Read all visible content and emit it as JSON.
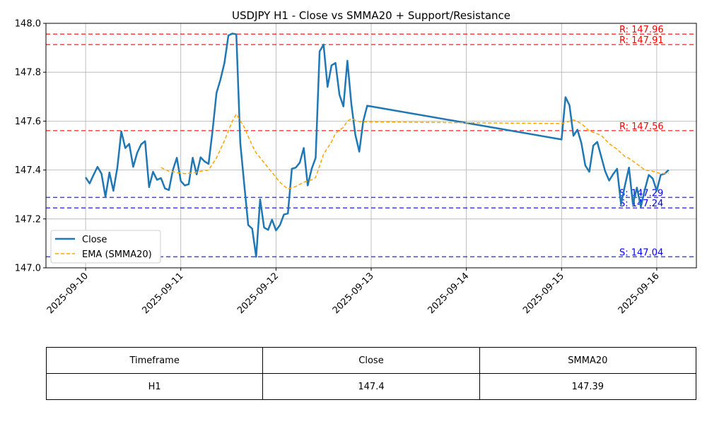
{
  "chart_data": {
    "type": "line",
    "title": "USDJPY H1 - Close vs SMMA20 + Support/Resistance",
    "ylim": [
      147.0,
      148.0
    ],
    "xlim": [
      "2025-09-09T14:00",
      "2025-09-16T10:00"
    ],
    "yticks": [
      "147.0",
      "147.2",
      "147.4",
      "147.6",
      "147.8",
      "148.0"
    ],
    "xticks": [
      "2025-09-10",
      "2025-09-11",
      "2025-09-12",
      "2025-09-13",
      "2025-09-14",
      "2025-09-15",
      "2025-09-16"
    ],
    "grid": true,
    "legend_position": "lower-left",
    "series": [
      {
        "name": "Close",
        "color": "#1f77b4",
        "style": "solid",
        "points": [
          [
            "2025-09-10T00:00",
            147.37
          ],
          [
            "2025-09-10T01:00",
            147.345
          ],
          [
            "2025-09-10T02:00",
            147.38
          ],
          [
            "2025-09-10T03:00",
            147.413
          ],
          [
            "2025-09-10T04:00",
            147.385
          ],
          [
            "2025-09-10T05:00",
            147.29
          ],
          [
            "2025-09-10T06:00",
            147.39
          ],
          [
            "2025-09-10T07:00",
            147.315
          ],
          [
            "2025-09-10T08:00",
            147.41
          ],
          [
            "2025-09-10T09:00",
            147.558
          ],
          [
            "2025-09-10T10:00",
            147.49
          ],
          [
            "2025-09-10T11:00",
            147.507
          ],
          [
            "2025-09-10T12:00",
            147.413
          ],
          [
            "2025-09-10T13:00",
            147.47
          ],
          [
            "2025-09-10T14:00",
            147.505
          ],
          [
            "2025-09-10T15:00",
            147.518
          ],
          [
            "2025-09-10T16:00",
            147.33
          ],
          [
            "2025-09-10T17:00",
            147.393
          ],
          [
            "2025-09-10T18:00",
            147.36
          ],
          [
            "2025-09-10T19:00",
            147.367
          ],
          [
            "2025-09-10T20:00",
            147.325
          ],
          [
            "2025-09-10T21:00",
            147.318
          ],
          [
            "2025-09-10T22:00",
            147.4
          ],
          [
            "2025-09-10T23:00",
            147.45
          ],
          [
            "2025-09-11T00:00",
            147.355
          ],
          [
            "2025-09-11T01:00",
            147.337
          ],
          [
            "2025-09-11T02:00",
            147.342
          ],
          [
            "2025-09-11T03:00",
            147.45
          ],
          [
            "2025-09-11T04:00",
            147.382
          ],
          [
            "2025-09-11T05:00",
            147.452
          ],
          [
            "2025-09-11T06:00",
            147.435
          ],
          [
            "2025-09-11T07:00",
            147.425
          ],
          [
            "2025-09-11T08:00",
            147.56
          ],
          [
            "2025-09-11T09:00",
            147.715
          ],
          [
            "2025-09-11T10:00",
            147.77
          ],
          [
            "2025-09-11T11:00",
            147.838
          ],
          [
            "2025-09-11T12:00",
            147.95
          ],
          [
            "2025-09-11T13:00",
            147.958
          ],
          [
            "2025-09-11T14:00",
            147.955
          ],
          [
            "2025-09-11T15:00",
            147.51
          ],
          [
            "2025-09-11T16:00",
            147.34
          ],
          [
            "2025-09-11T17:00",
            147.175
          ],
          [
            "2025-09-11T18:00",
            147.16
          ],
          [
            "2025-09-11T19:00",
            147.045
          ],
          [
            "2025-09-11T20:00",
            147.28
          ],
          [
            "2025-09-11T21:00",
            147.165
          ],
          [
            "2025-09-11T22:00",
            147.155
          ],
          [
            "2025-09-11T23:00",
            147.197
          ],
          [
            "2025-09-12T00:00",
            147.153
          ],
          [
            "2025-09-12T01:00",
            147.175
          ],
          [
            "2025-09-12T02:00",
            147.218
          ],
          [
            "2025-09-12T03:00",
            147.222
          ],
          [
            "2025-09-12T04:00",
            147.405
          ],
          [
            "2025-09-12T05:00",
            147.41
          ],
          [
            "2025-09-12T06:00",
            147.43
          ],
          [
            "2025-09-12T07:00",
            147.49
          ],
          [
            "2025-09-12T08:00",
            147.337
          ],
          [
            "2025-09-12T09:00",
            147.405
          ],
          [
            "2025-09-12T10:00",
            147.45
          ],
          [
            "2025-09-12T11:00",
            147.885
          ],
          [
            "2025-09-12T12:00",
            147.913
          ],
          [
            "2025-09-12T13:00",
            147.74
          ],
          [
            "2025-09-12T14:00",
            147.828
          ],
          [
            "2025-09-12T15:00",
            147.838
          ],
          [
            "2025-09-12T16:00",
            147.708
          ],
          [
            "2025-09-12T17:00",
            147.66
          ],
          [
            "2025-09-12T18:00",
            147.847
          ],
          [
            "2025-09-12T19:00",
            147.67
          ],
          [
            "2025-09-12T20:00",
            147.545
          ],
          [
            "2025-09-12T21:00",
            147.475
          ],
          [
            "2025-09-12T22:00",
            147.6
          ],
          [
            "2025-09-12T23:00",
            147.663
          ],
          [
            "2025-09-15T00:00",
            147.525
          ],
          [
            "2025-09-15T01:00",
            147.698
          ],
          [
            "2025-09-15T02:00",
            147.665
          ],
          [
            "2025-09-15T03:00",
            147.54
          ],
          [
            "2025-09-15T04:00",
            147.565
          ],
          [
            "2025-09-15T05:00",
            147.51
          ],
          [
            "2025-09-15T06:00",
            147.418
          ],
          [
            "2025-09-15T07:00",
            147.393
          ],
          [
            "2025-09-15T08:00",
            147.5
          ],
          [
            "2025-09-15T09:00",
            147.515
          ],
          [
            "2025-09-15T10:00",
            147.455
          ],
          [
            "2025-09-15T11:00",
            147.395
          ],
          [
            "2025-09-15T12:00",
            147.357
          ],
          [
            "2025-09-15T13:00",
            147.383
          ],
          [
            "2025-09-15T14:00",
            147.405
          ],
          [
            "2025-09-15T15:00",
            147.26
          ],
          [
            "2025-09-15T16:00",
            147.338
          ],
          [
            "2025-09-15T17:00",
            147.41
          ],
          [
            "2025-09-15T18:00",
            147.26
          ],
          [
            "2025-09-15T19:00",
            147.328
          ],
          [
            "2025-09-15T20:00",
            147.25
          ],
          [
            "2025-09-15T21:00",
            147.32
          ],
          [
            "2025-09-15T22:00",
            147.38
          ],
          [
            "2025-09-15T23:00",
            147.365
          ],
          [
            "2025-09-16T00:00",
            147.315
          ],
          [
            "2025-09-16T01:00",
            147.38
          ],
          [
            "2025-09-16T02:00",
            147.385
          ],
          [
            "2025-09-16T03:00",
            147.4
          ]
        ]
      },
      {
        "name": "EMA (SMMA20)",
        "color": "#ffa500",
        "style": "dashed",
        "points": [
          [
            "2025-09-10T19:00",
            147.41
          ],
          [
            "2025-09-10T21:00",
            147.395
          ],
          [
            "2025-09-10T23:00",
            147.39
          ],
          [
            "2025-09-11T01:00",
            147.385
          ],
          [
            "2025-09-11T03:00",
            147.388
          ],
          [
            "2025-09-11T05:00",
            147.395
          ],
          [
            "2025-09-11T07:00",
            147.4
          ],
          [
            "2025-09-11T09:00",
            147.45
          ],
          [
            "2025-09-11T11:00",
            147.52
          ],
          [
            "2025-09-11T13:00",
            147.6
          ],
          [
            "2025-09-11T14:00",
            147.628
          ],
          [
            "2025-09-11T16:00",
            147.575
          ],
          [
            "2025-09-11T18:00",
            147.5
          ],
          [
            "2025-09-11T19:00",
            147.47
          ],
          [
            "2025-09-11T21:00",
            147.43
          ],
          [
            "2025-09-11T23:00",
            147.39
          ],
          [
            "2025-09-12T01:00",
            147.35
          ],
          [
            "2025-09-12T03:00",
            147.322
          ],
          [
            "2025-09-12T05:00",
            147.333
          ],
          [
            "2025-09-12T07:00",
            147.35
          ],
          [
            "2025-09-12T09:00",
            147.36
          ],
          [
            "2025-09-12T10:00",
            147.37
          ],
          [
            "2025-09-12T12:00",
            147.465
          ],
          [
            "2025-09-12T14:00",
            147.515
          ],
          [
            "2025-09-12T15:00",
            147.55
          ],
          [
            "2025-09-12T17:00",
            147.575
          ],
          [
            "2025-09-12T18:00",
            147.6
          ],
          [
            "2025-09-12T19:00",
            147.61
          ],
          [
            "2025-09-12T21:00",
            147.598
          ],
          [
            "2025-09-12T23:00",
            147.597
          ],
          [
            "2025-09-15T00:00",
            147.59
          ],
          [
            "2025-09-15T02:00",
            147.6
          ],
          [
            "2025-09-15T03:00",
            147.605
          ],
          [
            "2025-09-15T05:00",
            147.59
          ],
          [
            "2025-09-15T07:00",
            147.56
          ],
          [
            "2025-09-15T10:00",
            147.542
          ],
          [
            "2025-09-15T12:00",
            147.508
          ],
          [
            "2025-09-15T14:00",
            147.485
          ],
          [
            "2025-09-15T16:00",
            147.455
          ],
          [
            "2025-09-15T17:00",
            147.448
          ],
          [
            "2025-09-15T19:00",
            147.425
          ],
          [
            "2025-09-15T21:00",
            147.4
          ],
          [
            "2025-09-15T23:00",
            147.395
          ],
          [
            "2025-09-16T01:00",
            147.385
          ],
          [
            "2025-09-16T03:00",
            147.388
          ]
        ]
      }
    ],
    "levels": [
      {
        "kind": "resistance",
        "value": 147.956,
        "label": "R: 147.96",
        "color": "#ff0000"
      },
      {
        "kind": "resistance",
        "value": 147.913,
        "label": "R: 147.91",
        "color": "#ff0000"
      },
      {
        "kind": "resistance",
        "value": 147.561,
        "label": "R: 147.56",
        "color": "#ff0000"
      },
      {
        "kind": "support",
        "value": 147.288,
        "label": "S: 147.29",
        "color": "#0000ff"
      },
      {
        "kind": "support",
        "value": 147.245,
        "label": "S: 147.24",
        "color": "#0000ff"
      },
      {
        "kind": "support",
        "value": 147.045,
        "label": "S: 147.04",
        "color": "#0000ff"
      }
    ]
  },
  "summary_table": {
    "headers": [
      "Timeframe",
      "Close",
      "SMMA20"
    ],
    "row": [
      "H1",
      "147.4",
      "147.39"
    ]
  }
}
